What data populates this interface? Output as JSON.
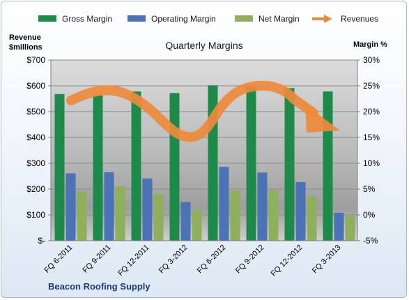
{
  "chart_data": {
    "type": "bar",
    "title": "Quarterly Margins",
    "categories": [
      "FQ 6-2011",
      "FQ 9-2011",
      "FQ 12-2011",
      "FQ 3-2012",
      "FQ 6-2012",
      "FQ 9-2012",
      "FQ 12-2012",
      "FQ 3-2013"
    ],
    "series": [
      {
        "name": "Gross Margin",
        "type": "bar",
        "axis": "left",
        "color": "#1e8a4a",
        "values": [
          568,
          563,
          578,
          572,
          602,
          598,
          591,
          578
        ]
      },
      {
        "name": "Operating Margin",
        "type": "bar",
        "axis": "left",
        "color": "#4a72b5",
        "values": [
          261,
          265,
          241,
          150,
          286,
          264,
          227,
          108
        ]
      },
      {
        "name": "Net Margin",
        "type": "bar",
        "axis": "left",
        "color": "#8fb05a",
        "values": [
          191,
          210,
          181,
          117,
          193,
          196,
          172,
          95
        ]
      },
      {
        "name": "Revenues",
        "type": "arrow",
        "axis": "right",
        "color": "#ee8a3c"
      }
    ],
    "y_left": {
      "label": "Revenue\n$millions",
      "ylim": [
        0,
        700
      ],
      "ticks": [
        700,
        600,
        500,
        400,
        300,
        200,
        100,
        0
      ],
      "tick_labels": [
        "$700",
        "$600",
        "$500",
        "$400",
        "$300",
        "$200",
        "$100",
        "$-"
      ]
    },
    "y_right": {
      "label": "Margin %",
      "ylim": [
        -5,
        30
      ],
      "ticks": [
        30,
        25,
        20,
        15,
        10,
        5,
        0,
        -5
      ],
      "tick_labels": [
        "30%",
        "25%",
        "20%",
        "15%",
        "10%",
        "5%",
        "0%",
        "-5%"
      ]
    },
    "grid": true,
    "legend": "top"
  },
  "footer": "Beacon Roofing Supply"
}
